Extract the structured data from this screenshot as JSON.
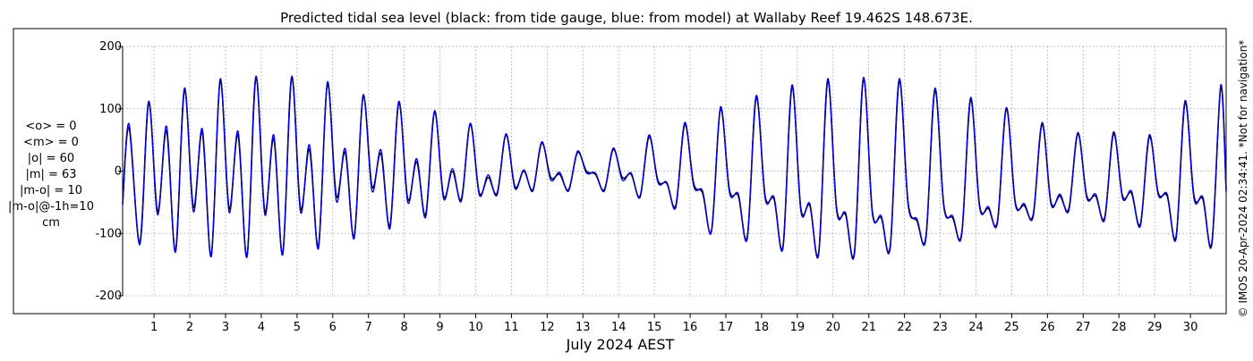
{
  "colors": {
    "gauge": "#000000",
    "model": "#0000dd",
    "grid": "#9a9a9a",
    "background": "#ffffff",
    "frame": "#000000"
  },
  "stats": {
    "mean_o": "<o> = 0",
    "mean_m": "<m> = 0",
    "abs_o": "|o| = 60",
    "abs_m": "|m| = 63",
    "abs_diff": "|m-o| = 10",
    "abs_diff_lag": "|m-o|@-1h=10",
    "unit": "cm"
  },
  "watermark": "© IMOS 20-Apr-2024 02:34:41. *Not for navigation*",
  "chart_data": {
    "type": "line",
    "title": "Predicted tidal sea level (black: from tide gauge, blue: from model) at Wallaby Reef 19.462S 148.673E.",
    "xlabel": "July 2024 AEST",
    "ylabel": "",
    "xlim": [
      0.12,
      31.0
    ],
    "ylim": [
      -200,
      200
    ],
    "yticks": [
      -200,
      -100,
      0,
      100,
      200
    ],
    "ytick_labels": [
      "-200",
      "-100",
      "0",
      "100",
      "200"
    ],
    "xticks": [
      1,
      2,
      3,
      4,
      5,
      6,
      7,
      8,
      9,
      10,
      11,
      12,
      13,
      14,
      15,
      16,
      17,
      18,
      19,
      20,
      21,
      22,
      23,
      24,
      25,
      26,
      27,
      28,
      29,
      30
    ],
    "xtick_labels": [
      "1",
      "2",
      "3",
      "4",
      "5",
      "6",
      "7",
      "8",
      "9",
      "10",
      "11",
      "12",
      "13",
      "14",
      "15",
      "16",
      "17",
      "18",
      "19",
      "20",
      "21",
      "22",
      "23",
      "24",
      "25",
      "26",
      "27",
      "28",
      "29",
      "30"
    ],
    "grid": true,
    "series": [
      {
        "name": "black: from tide gauge",
        "color": "#000000",
        "x": [
          0.12,
          0.3,
          0.6,
          0.85,
          1.1,
          1.35,
          1.6,
          1.85,
          2.1,
          2.35,
          2.6,
          2.85,
          3.1,
          3.35,
          3.6,
          3.85,
          4.1,
          4.35,
          4.6,
          4.85,
          5.1,
          5.35,
          5.6,
          5.85,
          6.1,
          6.35,
          6.6,
          6.85,
          7.1,
          7.35,
          7.6,
          7.85,
          8.1,
          8.35,
          8.6,
          8.85,
          9.1,
          9.35,
          9.6,
          9.85,
          10.1,
          10.35,
          10.6,
          10.85,
          11.1,
          11.35,
          11.6,
          11.85,
          12.1,
          12.35,
          12.6,
          12.85,
          13.1,
          13.35,
          13.6,
          13.85,
          14.1,
          14.35,
          14.6,
          14.85,
          15.1,
          15.35,
          15.6,
          15.85,
          16.1,
          16.35,
          16.6,
          16.85,
          17.1,
          17.35,
          17.6,
          17.85,
          18.1,
          18.35,
          18.6,
          18.85,
          19.1,
          19.35,
          19.6,
          19.85,
          20.1,
          20.35,
          20.6,
          20.85,
          21.1,
          21.35,
          21.6,
          21.85,
          22.1,
          22.35,
          22.6,
          22.85,
          23.1,
          23.35,
          23.6,
          23.85,
          24.1,
          24.35,
          24.6,
          24.85,
          25.1,
          25.35,
          25.6,
          25.85,
          26.1,
          26.35,
          26.6,
          26.85,
          27.1,
          27.35,
          27.6,
          27.85,
          28.1,
          28.35,
          28.6,
          28.85,
          29.1,
          29.35,
          29.6,
          29.85,
          30.1,
          30.35,
          30.6,
          30.85,
          31.0
        ],
        "y": [
          -52,
          70,
          -115,
          110,
          -65,
          65,
          -128,
          130,
          -58,
          62,
          -135,
          145,
          -60,
          58,
          -136,
          150,
          -65,
          52,
          -132,
          150,
          -60,
          35,
          -120,
          140,
          -40,
          30,
          -105,
          120,
          -25,
          28,
          -88,
          110,
          -45,
          15,
          -70,
          95,
          -40,
          0,
          -45,
          75,
          -35,
          -10,
          -35,
          58,
          -25,
          0,
          -30,
          45,
          -10,
          -5,
          -30,
          30,
          0,
          -5,
          -30,
          35,
          -10,
          -5,
          -40,
          55,
          -15,
          -20,
          -55,
          75,
          -20,
          -35,
          -95,
          100,
          -30,
          -40,
          -105,
          118,
          -40,
          -45,
          -120,
          135,
          -60,
          -55,
          -130,
          145,
          -60,
          -70,
          -130,
          148,
          -65,
          -75,
          -120,
          145,
          -50,
          -80,
          -105,
          130,
          -55,
          -75,
          -100,
          115,
          -55,
          -60,
          -80,
          100,
          -50,
          -55,
          -70,
          75,
          -50,
          -40,
          -60,
          60,
          -40,
          -40,
          -75,
          60,
          -40,
          -35,
          -85,
          55,
          -35,
          -40,
          -105,
          110,
          -40,
          -45,
          -115,
          135,
          -30
        ]
      },
      {
        "name": "blue: from model",
        "color": "#0000dd",
        "x": [
          0.12,
          0.3,
          0.6,
          0.85,
          1.1,
          1.35,
          1.6,
          1.85,
          2.1,
          2.35,
          2.6,
          2.85,
          3.1,
          3.35,
          3.6,
          3.85,
          4.1,
          4.35,
          4.6,
          4.85,
          5.1,
          5.35,
          5.6,
          5.85,
          6.1,
          6.35,
          6.6,
          6.85,
          7.1,
          7.35,
          7.6,
          7.85,
          8.1,
          8.35,
          8.6,
          8.85,
          9.1,
          9.35,
          9.6,
          9.85,
          10.1,
          10.35,
          10.6,
          10.85,
          11.1,
          11.35,
          11.6,
          11.85,
          12.1,
          12.35,
          12.6,
          12.85,
          13.1,
          13.35,
          13.6,
          13.85,
          14.1,
          14.35,
          14.6,
          14.85,
          15.1,
          15.35,
          15.6,
          15.85,
          16.1,
          16.35,
          16.6,
          16.85,
          17.1,
          17.35,
          17.6,
          17.85,
          18.1,
          18.35,
          18.6,
          18.85,
          19.1,
          19.35,
          19.6,
          19.85,
          20.1,
          20.35,
          20.6,
          20.85,
          21.1,
          21.35,
          21.6,
          21.85,
          22.1,
          22.35,
          22.6,
          22.85,
          23.1,
          23.35,
          23.6,
          23.85,
          24.1,
          24.35,
          24.6,
          24.85,
          25.1,
          25.35,
          25.6,
          25.85,
          26.1,
          26.35,
          26.6,
          26.85,
          27.1,
          27.35,
          27.6,
          27.85,
          28.1,
          28.35,
          28.6,
          28.85,
          29.1,
          29.35,
          29.6,
          29.85,
          30.1,
          30.35,
          30.6,
          30.85,
          31.0
        ],
        "y": [
          -55,
          76,
          -118,
          112,
          -70,
          72,
          -130,
          133,
          -65,
          68,
          -137,
          148,
          -66,
          64,
          -138,
          152,
          -70,
          58,
          -134,
          152,
          -66,
          42,
          -124,
          143,
          -48,
          36,
          -108,
          122,
          -32,
          34,
          -92,
          112,
          -50,
          20,
          -74,
          97,
          -44,
          4,
          -48,
          77,
          -38,
          -6,
          -38,
          60,
          -28,
          2,
          -32,
          47,
          -14,
          -2,
          -32,
          32,
          -3,
          -3,
          -32,
          37,
          -14,
          -3,
          -42,
          58,
          -18,
          -18,
          -58,
          78,
          -24,
          -32,
          -97,
          103,
          -34,
          -37,
          -108,
          121,
          -44,
          -42,
          -123,
          138,
          -64,
          -52,
          -133,
          148,
          -64,
          -67,
          -133,
          150,
          -68,
          -72,
          -123,
          148,
          -54,
          -77,
          -108,
          133,
          -58,
          -72,
          -103,
          118,
          -58,
          -57,
          -83,
          102,
          -53,
          -52,
          -73,
          78,
          -53,
          -37,
          -63,
          62,
          -43,
          -37,
          -78,
          63,
          -43,
          -32,
          -88,
          58,
          -38,
          -37,
          -108,
          113,
          -44,
          -42,
          -118,
          138,
          -34
        ]
      }
    ]
  }
}
